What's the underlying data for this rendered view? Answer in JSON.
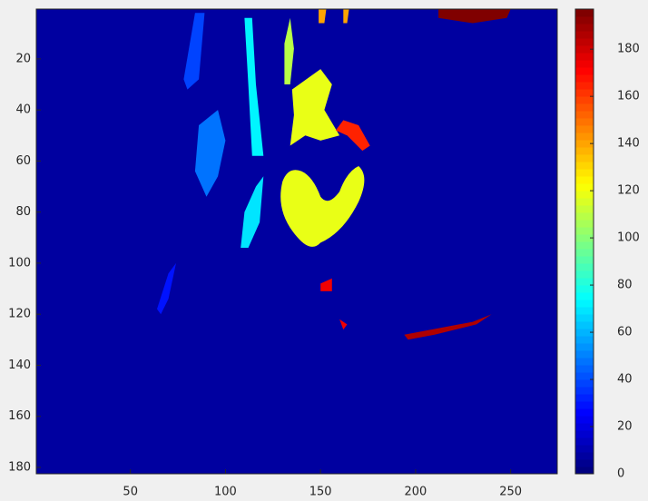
{
  "chart_data": {
    "type": "heatmap",
    "colormap": "jet",
    "values": [
      8,
      120,
      118,
      70,
      72,
      48,
      38,
      195,
      186,
      140,
      165,
      30,
      175,
      110
    ],
    "xlim": [
      0.5,
      274.5
    ],
    "xticks": [
      50,
      100,
      150,
      200,
      250
    ],
    "ylim": [
      0.5,
      182.5
    ],
    "yticks": [
      20,
      40,
      60,
      80,
      100,
      120,
      140,
      160,
      180
    ],
    "clim": [
      0,
      197
    ],
    "cticks": [
      0,
      20,
      40,
      60,
      80,
      100,
      120,
      140,
      160,
      180
    ]
  }
}
